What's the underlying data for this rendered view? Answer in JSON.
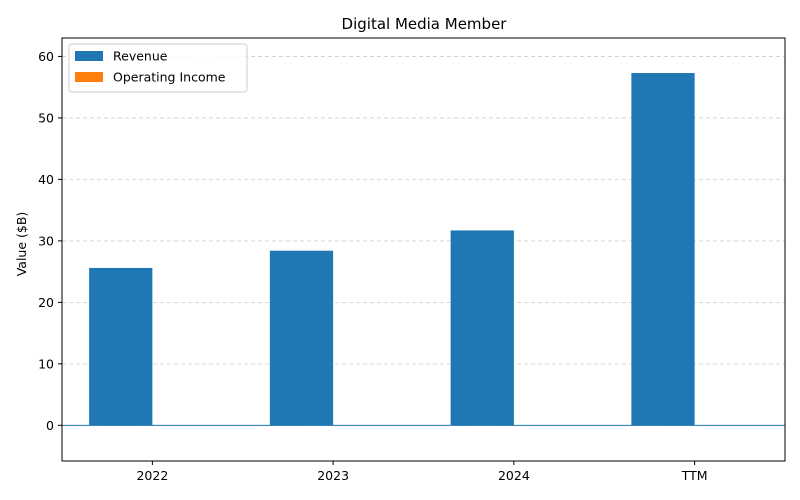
{
  "chart_data": {
    "type": "bar",
    "title": "Digital Media Member",
    "xlabel": "",
    "ylabel": "Value ($B)",
    "categories": [
      "2022",
      "2023",
      "2024",
      "TTM"
    ],
    "series": [
      {
        "name": "Revenue",
        "color": "#1f77b4",
        "values": [
          25.6,
          28.4,
          31.7,
          57.3
        ]
      },
      {
        "name": "Operating Income",
        "color": "#ff7f0e",
        "values": [
          0,
          0,
          0,
          0
        ]
      }
    ],
    "ylim": [
      -5.8,
      63.0
    ],
    "yticks": [
      0,
      10,
      20,
      30,
      40,
      50,
      60
    ],
    "grid": "y-dashed",
    "legend": "top-left"
  }
}
